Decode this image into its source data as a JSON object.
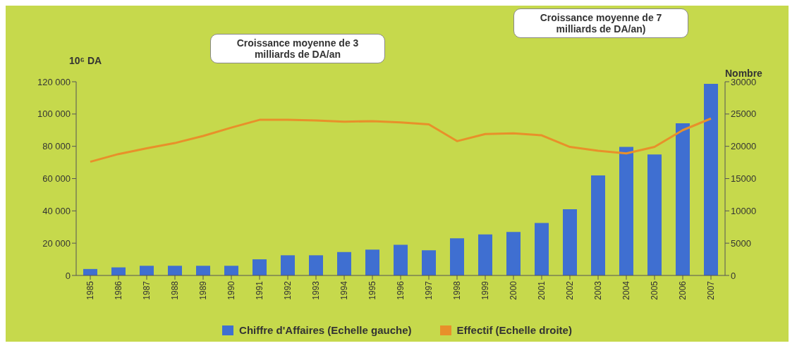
{
  "chart_data": {
    "type": "bar",
    "categories": [
      "1985",
      "1986",
      "1987",
      "1988",
      "1989",
      "1990",
      "1991",
      "1992",
      "1993",
      "1994",
      "1995",
      "1996",
      "1997",
      "1998",
      "1999",
      "2000",
      "2001",
      "2002",
      "2003",
      "2004",
      "2005",
      "2006",
      "2007"
    ],
    "series": [
      {
        "name": "Chiffre d'Affaires (Echelle gauche)",
        "color": "#3f6fd1",
        "values": [
          4000,
          5000,
          6000,
          6000,
          6000,
          6000,
          10000,
          12500,
          12500,
          14500,
          16000,
          19000,
          15600,
          23000,
          25400,
          27000,
          32500,
          41000,
          62000,
          79600,
          75000,
          94300,
          118700
        ]
      },
      {
        "name": "Effectif (Echelle droite)",
        "type": "line",
        "axis": "y2",
        "color": "#e8902a",
        "values": [
          17600,
          18800,
          19700,
          20500,
          21600,
          22900,
          24100,
          24100,
          24000,
          23800,
          23900,
          23700,
          23400,
          20800,
          21900,
          22000,
          21700,
          19900,
          19300,
          18900,
          19900,
          22500,
          24300
        ]
      }
    ],
    "ylabel": "10⁶ DA",
    "y2label": "Nombre",
    "ylim": [
      0,
      120000
    ],
    "yticks": [
      {
        "value": 0,
        "label": "0"
      },
      {
        "value": 20000,
        "label": "20 000"
      },
      {
        "value": 40000,
        "label": "40 000"
      },
      {
        "value": 60000,
        "label": "60 000"
      },
      {
        "value": 80000,
        "label": "80 000"
      },
      {
        "value": 100000,
        "label": "100 000"
      },
      {
        "value": 120000,
        "label": "120 000"
      }
    ],
    "y2lim": [
      0,
      30000
    ],
    "y2ticks": [
      0,
      5000,
      10000,
      15000,
      20000,
      25000,
      30000
    ],
    "annotations": [
      "Croissance moyenne de 3  milliards de DA/an",
      "Croissance moyenne de 7 milliards de DA/an)"
    ],
    "legend": "bottom",
    "marker": "none"
  }
}
